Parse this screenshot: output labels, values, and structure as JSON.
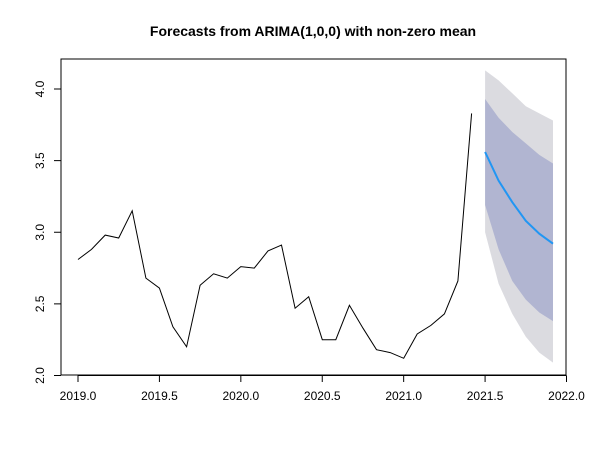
{
  "chart_data": {
    "type": "line",
    "title": "Forecasts from ARIMA(1,0,0) with non-zero mean",
    "xlabel": "",
    "ylabel": "",
    "xlim": [
      2019.0,
      2022.0
    ],
    "ylim": [
      2.0,
      4.2
    ],
    "x_ticks": [
      2019.0,
      2019.5,
      2020.0,
      2020.5,
      2021.0,
      2021.5,
      2022.0
    ],
    "x_tick_labels": [
      "2019.0",
      "2019.5",
      "2020.0",
      "2020.5",
      "2021.0",
      "2021.5",
      "2022.0"
    ],
    "y_ticks": [
      2.0,
      2.5,
      3.0,
      3.5,
      4.0
    ],
    "y_tick_labels": [
      "2.0",
      "2.5",
      "3.0",
      "3.5",
      "4.0"
    ],
    "grid": false,
    "observed": {
      "color": "#000000",
      "x": [
        2019.0,
        2019.083,
        2019.167,
        2019.25,
        2019.333,
        2019.417,
        2019.5,
        2019.583,
        2019.667,
        2019.75,
        2019.833,
        2019.917,
        2020.0,
        2020.083,
        2020.167,
        2020.25,
        2020.333,
        2020.417,
        2020.5,
        2020.583,
        2020.667,
        2020.75,
        2020.833,
        2020.917,
        2021.0,
        2021.083,
        2021.167,
        2021.25,
        2021.333,
        2021.417
      ],
      "y": [
        2.81,
        2.88,
        2.98,
        2.96,
        3.15,
        2.68,
        2.61,
        2.34,
        2.2,
        2.63,
        2.71,
        2.68,
        2.76,
        2.75,
        2.87,
        2.91,
        2.47,
        2.55,
        2.25,
        2.25,
        2.49,
        2.33,
        2.18,
        2.16,
        2.12,
        2.29,
        2.35,
        2.43,
        2.66,
        3.83
      ]
    },
    "forecast": {
      "color": "#2196F3",
      "x": [
        2021.5,
        2021.583,
        2021.667,
        2021.75,
        2021.833,
        2021.917
      ],
      "mean": [
        3.56,
        3.36,
        3.21,
        3.08,
        2.99,
        2.92
      ],
      "lower80": [
        3.19,
        2.88,
        2.66,
        2.53,
        2.44,
        2.38
      ],
      "upper80": [
        3.93,
        3.8,
        3.7,
        3.62,
        3.54,
        3.48
      ],
      "lower95": [
        3.0,
        2.64,
        2.43,
        2.27,
        2.16,
        2.09
      ],
      "upper95": [
        4.13,
        4.06,
        3.97,
        3.88,
        3.83,
        3.78
      ],
      "band80_color": "#B1B5D1",
      "band95_color": "#DBDBE0"
    }
  }
}
